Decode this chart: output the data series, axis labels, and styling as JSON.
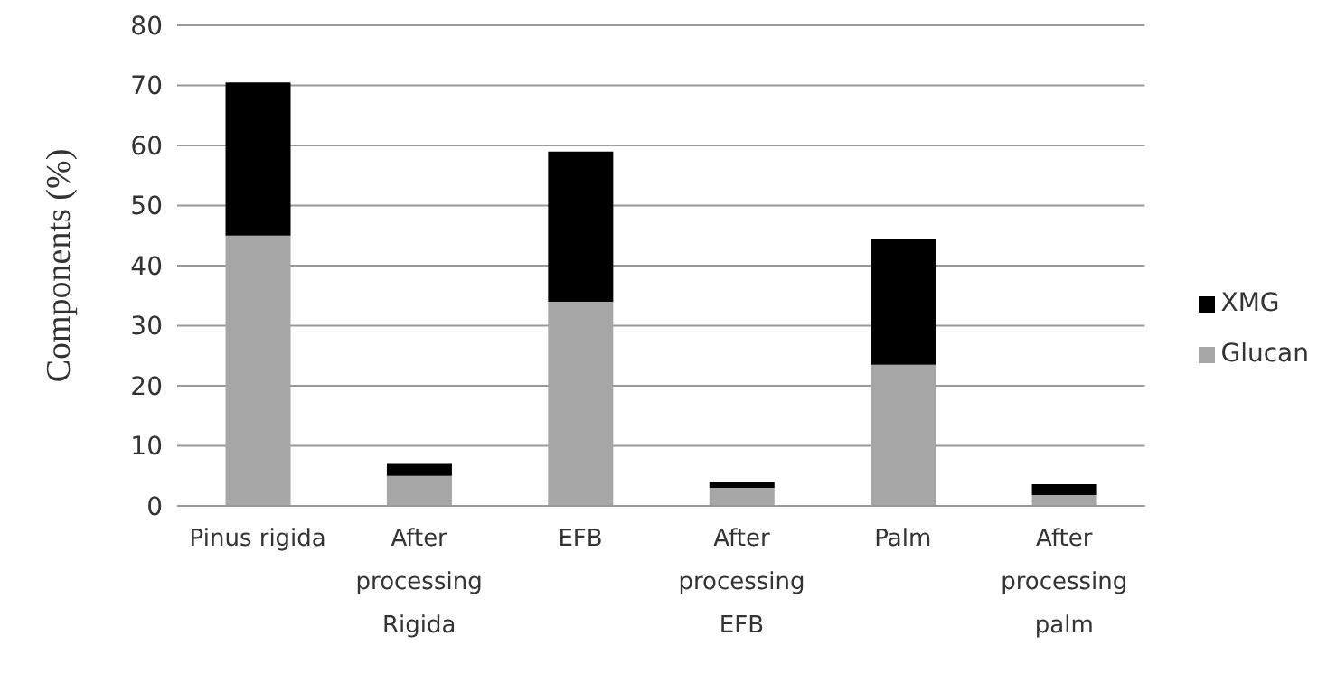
{
  "chart_data": {
    "type": "bar",
    "stacked": true,
    "ylabel": "Components (%)",
    "categories": [
      "Pinus rigida",
      "After processing Rigida",
      "EFB",
      "After processing EFB",
      "Palm",
      "After processing palm"
    ],
    "series": [
      {
        "name": "Glucan",
        "color": "#a6a6a6",
        "values": [
          45,
          5,
          34,
          3,
          23.5,
          1.8
        ]
      },
      {
        "name": "XMG",
        "color": "#000000",
        "values": [
          25.5,
          2,
          25,
          1,
          21,
          1.8
        ]
      }
    ],
    "ylim": [
      0,
      80
    ],
    "yticks": [
      0,
      10,
      20,
      30,
      40,
      50,
      60,
      70,
      80
    ],
    "grid": "y",
    "legend": "right"
  }
}
